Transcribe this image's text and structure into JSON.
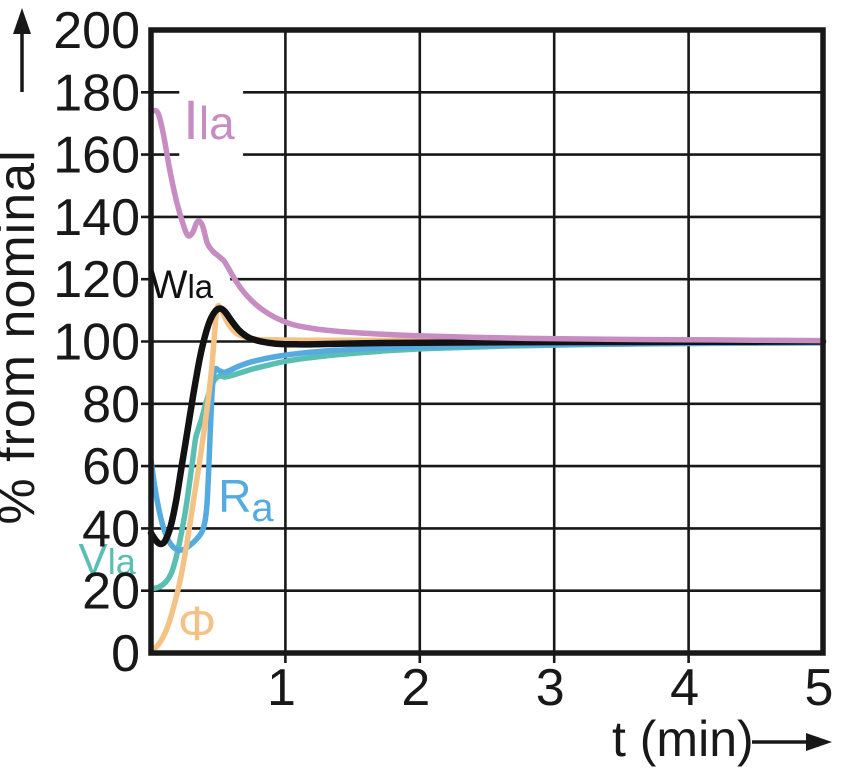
{
  "figure": {
    "background": "#ffffff",
    "axis_color": "#181818",
    "grid_color": "#181818"
  },
  "chart_data": {
    "type": "line",
    "title": "",
    "xlabel": "t (min)",
    "ylabel": "% from nominal",
    "xlabel_arrow": "right",
    "ylabel_arrow": "up",
    "xlim": [
      0,
      5
    ],
    "ylim": [
      0,
      200
    ],
    "x_ticks": [
      "1",
      "2",
      "3",
      "4",
      "5"
    ],
    "y_ticks": [
      "0",
      "20",
      "40",
      "60",
      "80",
      "100",
      "120",
      "140",
      "160",
      "180",
      "200"
    ],
    "grid": "on",
    "legend_position": "inline-curve-labels",
    "series": [
      {
        "name": "Vla",
        "label_parts": [
          {
            "text": "V",
            "type": "main"
          },
          {
            "text": "la",
            "type": "small"
          }
        ],
        "color": "#5abfb2",
        "stroke_width": 5.5,
        "label_pos": [
          -0.54,
          25.4
        ],
        "label_font": [
          44,
          36
        ],
        "halo": false,
        "points": [
          [
            0,
            20.6
          ],
          [
            0.06,
            21.2
          ],
          [
            0.11,
            22.8
          ],
          [
            0.15,
            25.5
          ],
          [
            0.18,
            29.5
          ],
          [
            0.21,
            35
          ],
          [
            0.25,
            44
          ],
          [
            0.28,
            52.5
          ],
          [
            0.31,
            62
          ],
          [
            0.33,
            68.5
          ],
          [
            0.345,
            71
          ],
          [
            0.375,
            75
          ],
          [
            0.41,
            80.5
          ],
          [
            0.44,
            84.5
          ],
          [
            0.47,
            87.5
          ],
          [
            0.51,
            88.9
          ],
          [
            0.55,
            88.6
          ],
          [
            0.6,
            89.1
          ],
          [
            0.67,
            90
          ],
          [
            0.76,
            91.2
          ],
          [
            0.88,
            92.5
          ],
          [
            1.02,
            93.8
          ],
          [
            1.22,
            95
          ],
          [
            1.45,
            96
          ],
          [
            1.75,
            97
          ],
          [
            2.1,
            97.8
          ],
          [
            2.6,
            98.5
          ],
          [
            3.2,
            99
          ],
          [
            4,
            99.35
          ],
          [
            5,
            99.55
          ]
        ]
      },
      {
        "name": "Ra",
        "label_parts": [
          {
            "text": "R",
            "type": "main"
          },
          {
            "text": "a",
            "type": "sub"
          }
        ],
        "color": "#55abdf",
        "stroke_width": 5.5,
        "label_pos": [
          0.5,
          45.3
        ],
        "label_font": [
          46,
          40
        ],
        "halo": false,
        "points": [
          [
            0,
            62
          ],
          [
            0.035,
            51.5
          ],
          [
            0.075,
            43
          ],
          [
            0.115,
            37.5
          ],
          [
            0.155,
            34.5
          ],
          [
            0.195,
            33.2
          ],
          [
            0.24,
            33.2
          ],
          [
            0.29,
            34.6
          ],
          [
            0.34,
            36.6
          ],
          [
            0.38,
            39
          ],
          [
            0.405,
            43
          ],
          [
            0.42,
            50
          ],
          [
            0.435,
            65
          ],
          [
            0.45,
            80
          ],
          [
            0.462,
            88
          ],
          [
            0.478,
            91.2
          ],
          [
            0.51,
            90.6
          ],
          [
            0.545,
            90.1
          ],
          [
            0.59,
            90.8
          ],
          [
            0.66,
            92.2
          ],
          [
            0.75,
            93.5
          ],
          [
            0.86,
            94.6
          ],
          [
            0.98,
            95.5
          ],
          [
            1.15,
            96.4
          ],
          [
            1.35,
            97.1
          ],
          [
            1.6,
            97.7
          ],
          [
            1.9,
            98.1
          ],
          [
            2.3,
            98.5
          ],
          [
            2.8,
            98.9
          ],
          [
            3.4,
            99.2
          ],
          [
            4.2,
            99.45
          ],
          [
            5,
            99.6
          ]
        ]
      },
      {
        "name": "Phi",
        "label_parts": [
          {
            "text": "Φ",
            "type": "main"
          }
        ],
        "color": "#f5c286",
        "stroke_width": 5.5,
        "label_pos": [
          0.2,
          4.2
        ],
        "label_font": [
          48,
          40
        ],
        "halo": false,
        "points": [
          [
            0,
            0.6
          ],
          [
            0.06,
            3
          ],
          [
            0.12,
            8
          ],
          [
            0.17,
            15
          ],
          [
            0.22,
            24
          ],
          [
            0.27,
            36
          ],
          [
            0.32,
            50
          ],
          [
            0.36,
            61
          ],
          [
            0.4,
            73
          ],
          [
            0.43,
            83
          ],
          [
            0.455,
            93
          ],
          [
            0.47,
            101
          ],
          [
            0.485,
            108.5
          ],
          [
            0.5,
            111.5
          ],
          [
            0.53,
            109.5
          ],
          [
            0.57,
            106
          ],
          [
            0.62,
            103.2
          ],
          [
            0.69,
            101.5
          ],
          [
            0.79,
            100.7
          ],
          [
            0.92,
            100.5
          ],
          [
            1.15,
            100.4
          ],
          [
            1.5,
            100.4
          ],
          [
            2,
            100.35
          ],
          [
            2.8,
            100.25
          ],
          [
            3.8,
            100.15
          ],
          [
            5,
            100.1
          ]
        ]
      },
      {
        "name": "Wla",
        "label_parts": [
          {
            "text": "W",
            "type": "main"
          },
          {
            "text": "la",
            "type": "small"
          }
        ],
        "color": "#121212",
        "stroke_width": 6.5,
        "label_pos": [
          -0.01,
          114
        ],
        "label_font": [
          40,
          33
        ],
        "halo": true,
        "points": [
          [
            0,
            38.5
          ],
          [
            0.035,
            36.2
          ],
          [
            0.07,
            35
          ],
          [
            0.105,
            36
          ],
          [
            0.145,
            40.5
          ],
          [
            0.185,
            48.5
          ],
          [
            0.225,
            59
          ],
          [
            0.27,
            71
          ],
          [
            0.315,
            83
          ],
          [
            0.36,
            94
          ],
          [
            0.4,
            101.5
          ],
          [
            0.44,
            106.8
          ],
          [
            0.48,
            109.8
          ],
          [
            0.515,
            110.6
          ],
          [
            0.55,
            109.6
          ],
          [
            0.6,
            106.6
          ],
          [
            0.66,
            103.4
          ],
          [
            0.73,
            101.2
          ],
          [
            0.82,
            100
          ],
          [
            0.93,
            99.3
          ],
          [
            1.08,
            99.1
          ],
          [
            1.3,
            99.2
          ],
          [
            1.6,
            99.45
          ],
          [
            2,
            99.6
          ],
          [
            2.6,
            99.75
          ],
          [
            3.4,
            99.85
          ],
          [
            4.2,
            99.9
          ],
          [
            5,
            100
          ]
        ]
      },
      {
        "name": "Ila",
        "label_parts": [
          {
            "text": "I",
            "type": "main"
          },
          {
            "text": "la",
            "type": "small"
          }
        ],
        "color": "#c78dc2",
        "stroke_width": 5.5,
        "label_pos": [
          0.24,
          165
        ],
        "label_font": [
          56,
          46
        ],
        "halo": true,
        "points": [
          [
            0,
            174
          ],
          [
            0.05,
            173.5
          ],
          [
            0.09,
            167
          ],
          [
            0.14,
            155
          ],
          [
            0.19,
            145
          ],
          [
            0.24,
            137.5
          ],
          [
            0.275,
            134
          ],
          [
            0.31,
            135
          ],
          [
            0.345,
            138.5
          ],
          [
            0.38,
            137.5
          ],
          [
            0.42,
            131.5
          ],
          [
            0.46,
            129
          ],
          [
            0.5,
            127.5
          ],
          [
            0.54,
            126
          ],
          [
            0.57,
            124
          ],
          [
            0.61,
            121
          ],
          [
            0.67,
            117
          ],
          [
            0.74,
            113.5
          ],
          [
            0.82,
            110.5
          ],
          [
            0.92,
            107.8
          ],
          [
            1.05,
            105.5
          ],
          [
            1.2,
            104.2
          ],
          [
            1.4,
            103.2
          ],
          [
            1.65,
            102.5
          ],
          [
            1.95,
            101.9
          ],
          [
            2.35,
            101.4
          ],
          [
            2.8,
            101
          ],
          [
            3.4,
            100.7
          ],
          [
            4.2,
            100.5
          ],
          [
            5,
            100.3
          ]
        ]
      }
    ]
  }
}
